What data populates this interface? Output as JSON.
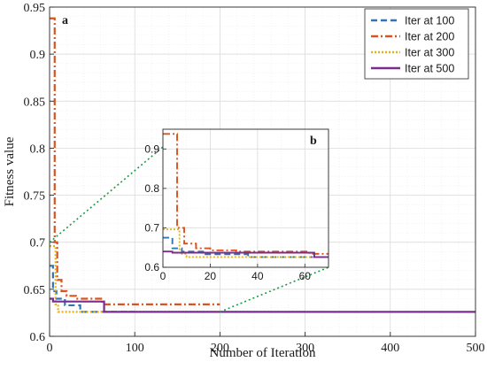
{
  "chart_data": [
    {
      "type": "line",
      "panel_label": "a",
      "xlabel": "Number of Iteration",
      "ylabel": "Fitness value",
      "xlim": [
        0,
        500
      ],
      "ylim": [
        0.6,
        0.95
      ],
      "xticks": [
        0,
        100,
        200,
        300,
        400,
        500
      ],
      "yticks": [
        0.6,
        0.65,
        0.7,
        0.75,
        0.8,
        0.85,
        0.9,
        0.95
      ],
      "grid": true,
      "legend_position": "top-right",
      "series": [
        {
          "name": "Iter at 100",
          "color": "#2e75b6",
          "dash": "dashed",
          "points": [
            [
              0,
              0.675
            ],
            [
              4,
              0.675
            ],
            [
              4,
              0.648
            ],
            [
              8,
              0.648
            ],
            [
              8,
              0.64
            ],
            [
              18,
              0.64
            ],
            [
              18,
              0.633
            ],
            [
              36,
              0.633
            ],
            [
              36,
              0.626
            ],
            [
              100,
              0.626
            ]
          ]
        },
        {
          "name": "Iter at 200",
          "color": "#d9531e",
          "dash": "dashdot",
          "points": [
            [
              0,
              0.938
            ],
            [
              6,
              0.938
            ],
            [
              6,
              0.7
            ],
            [
              9,
              0.7
            ],
            [
              9,
              0.66
            ],
            [
              14,
              0.66
            ],
            [
              14,
              0.648
            ],
            [
              20,
              0.648
            ],
            [
              20,
              0.643
            ],
            [
              31,
              0.643
            ],
            [
              31,
              0.64
            ],
            [
              62,
              0.64
            ],
            [
              62,
              0.634
            ],
            [
              200,
              0.634
            ]
          ]
        },
        {
          "name": "Iter at 300",
          "color": "#e6b115",
          "dash": "dotted",
          "points": [
            [
              0,
              0.696
            ],
            [
              7,
              0.696
            ],
            [
              7,
              0.634
            ],
            [
              10,
              0.634
            ],
            [
              10,
              0.626
            ],
            [
              300,
              0.626
            ]
          ]
        },
        {
          "name": "Iter at 500",
          "color": "#7b2d8e",
          "dash": "solid",
          "points": [
            [
              0,
              0.64
            ],
            [
              4,
              0.64
            ],
            [
              4,
              0.637
            ],
            [
              64,
              0.637
            ],
            [
              64,
              0.626
            ],
            [
              500,
              0.626
            ]
          ]
        }
      ]
    },
    {
      "type": "line",
      "panel_label": "b",
      "xlim": [
        0,
        70
      ],
      "ylim": [
        0.6,
        0.95
      ],
      "xticks": [
        0,
        20,
        40,
        60
      ],
      "yticks": [
        0.6,
        0.7,
        0.8,
        0.9
      ],
      "grid": true,
      "inset_of": "a",
      "series_ref": [
        "Iter at 100",
        "Iter at 200",
        "Iter at 300",
        "Iter at 500"
      ]
    }
  ]
}
